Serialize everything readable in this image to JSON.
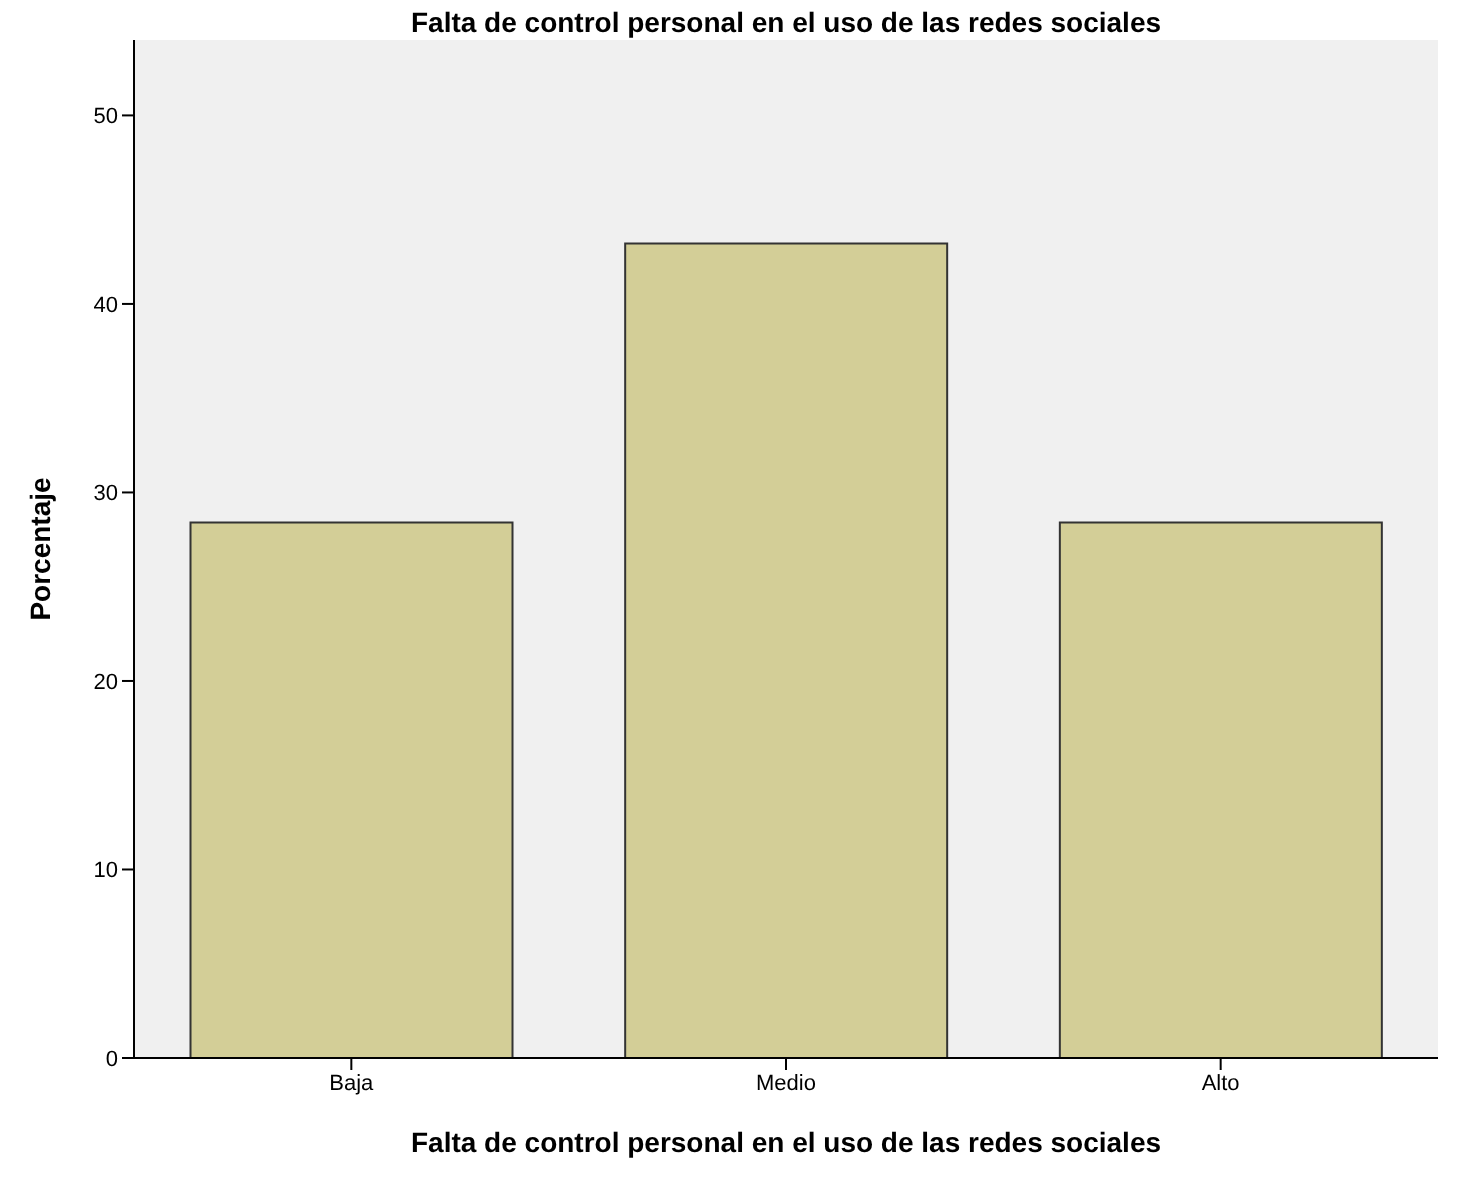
{
  "chart_data": {
    "type": "bar",
    "title": "Falta de control personal en el uso de las redes sociales",
    "xlabel": "Falta de control personal en el uso de las redes sociales",
    "ylabel": "Porcentaje",
    "categories": [
      "Baja",
      "Medio",
      "Alto"
    ],
    "series": [
      {
        "color": "#d3ce97",
        "values": [
          28.4,
          43.2,
          28.4
        ]
      }
    ],
    "ylim": [
      0,
      54
    ],
    "yticks": [
      0,
      10,
      20,
      30,
      40,
      50
    ],
    "grid": false
  }
}
